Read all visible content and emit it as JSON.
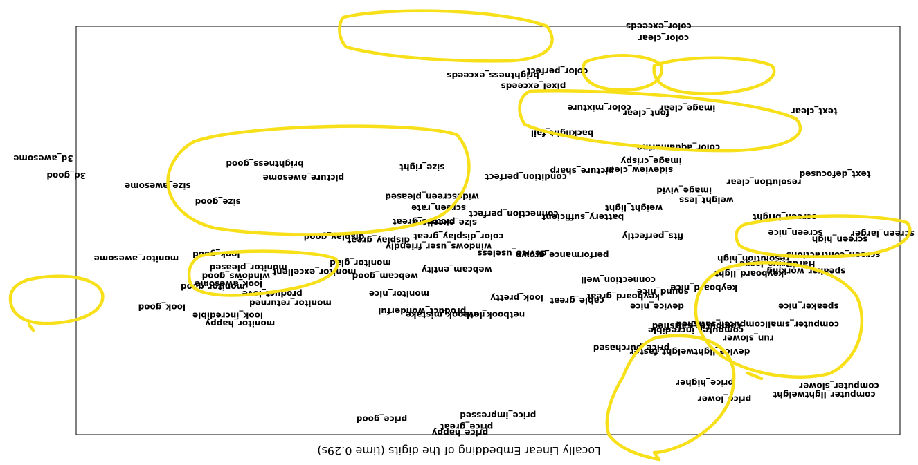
{
  "chart_data": {
    "type": "scatter",
    "orientation": "rotated-180",
    "title": "Locally Linear Embedding of the digits (time 0.29s)",
    "xlabel": "",
    "ylabel": "",
    "grid": false,
    "ticks": false,
    "highlight_color": "#f7e01a",
    "points": [
      {
        "label": "price_happy",
        "x": 0.534,
        "y": 0.988
      },
      {
        "label": "price_great",
        "x": 0.526,
        "y": 0.974
      },
      {
        "label": "price_good",
        "x": 0.629,
        "y": 0.955
      },
      {
        "label": "price_impressed",
        "x": 0.488,
        "y": 0.946
      },
      {
        "label": "price_lower",
        "x": 0.213,
        "y": 0.906
      },
      {
        "label": "price_higher",
        "x": 0.237,
        "y": 0.866
      },
      {
        "label": "computer_lightweight",
        "x": 0.092,
        "y": 0.895
      },
      {
        "label": "computer_slower",
        "x": 0.074,
        "y": 0.874
      },
      {
        "label": "device_lightweight_faster",
        "x": 0.255,
        "y": 0.79
      },
      {
        "label": "price_purchased",
        "x": 0.326,
        "y": 0.781
      },
      {
        "label": "run_slower",
        "x": 0.184,
        "y": 0.757
      },
      {
        "label": "computer_incredible",
        "x": 0.248,
        "y": 0.738
      },
      {
        "label": "computer_satisfied",
        "x": 0.247,
        "y": 0.728
      },
      {
        "label": "computer_smallcomputer_satisfied",
        "x": 0.173,
        "y": 0.723
      },
      {
        "label": "monitor_happy",
        "x": 0.801,
        "y": 0.721
      },
      {
        "label": "look_incredible",
        "x": 0.816,
        "y": 0.701
      },
      {
        "label": "netbook_love",
        "x": 0.493,
        "y": 0.7
      },
      {
        "label": "netbook_mistake",
        "x": 0.552,
        "y": 0.7
      },
      {
        "label": "product_wonderful",
        "x": 0.58,
        "y": 0.69
      },
      {
        "label": "look_good",
        "x": 0.896,
        "y": 0.681
      },
      {
        "label": "speaker_nice",
        "x": 0.111,
        "y": 0.679
      },
      {
        "label": "device_nice",
        "x": 0.295,
        "y": 0.679
      },
      {
        "label": "monitor_returned",
        "x": 0.74,
        "y": 0.671
      },
      {
        "label": "cable_great",
        "x": 0.392,
        "y": 0.665
      },
      {
        "label": "look_pretty",
        "x": 0.465,
        "y": 0.658
      },
      {
        "label": "keyboard_great",
        "x": 0.336,
        "y": 0.655
      },
      {
        "label": "monitor_nice",
        "x": 0.608,
        "y": 0.648
      },
      {
        "label": "product_love",
        "x": 0.762,
        "y": 0.648
      },
      {
        "label": "keyboard_nice",
        "x": 0.238,
        "y": 0.634
      },
      {
        "label": "monitor_good",
        "x": 0.834,
        "y": 0.631
      },
      {
        "label": "look_awesome",
        "x": 0.815,
        "y": 0.624
      },
      {
        "label": "sound_nice",
        "x": 0.288,
        "y": 0.643
      },
      {
        "label": "connection_well",
        "x": 0.342,
        "y": 0.614
      },
      {
        "label": "windows_good",
        "x": 0.806,
        "y": 0.605
      },
      {
        "label": "monitor_excellent",
        "x": 0.711,
        "y": 0.595
      },
      {
        "label": "webcam_good",
        "x": 0.625,
        "y": 0.605
      },
      {
        "label": "speaker_working",
        "x": 0.114,
        "y": 0.593
      },
      {
        "label": "keyboard_light",
        "x": 0.183,
        "y": 0.599
      },
      {
        "label": "monitor_pleased",
        "x": 0.791,
        "y": 0.584
      },
      {
        "label": "webcam_entity",
        "x": 0.538,
        "y": 0.589
      },
      {
        "label": "HardDrive_large",
        "x": 0.149,
        "y": 0.575
      },
      {
        "label": "resolution_high",
        "x": 0.178,
        "y": 0.563
      },
      {
        "label": "monitor_awesome",
        "x": 0.927,
        "y": 0.562
      },
      {
        "label": "look_good_2",
        "x": 0.83,
        "y": 0.552
      },
      {
        "label": "monitor_glad",
        "x": 0.655,
        "y": 0.573
      },
      {
        "label": "screen_contractions",
        "x": 0.081,
        "y": 0.553
      },
      {
        "label": "performance_grown",
        "x": 0.41,
        "y": 0.553
      },
      {
        "label": "device_useless",
        "x": 0.471,
        "y": 0.549
      },
      {
        "label": "windows_user_friendly",
        "x": 0.56,
        "y": 0.532
      },
      {
        "label": "display_great",
        "x": 0.633,
        "y": 0.517
      },
      {
        "label": "fits_perfectly",
        "x": 0.3,
        "y": 0.507
      },
      {
        "label": "color_display_great",
        "x": 0.536,
        "y": 0.508
      },
      {
        "label": "display_good",
        "x": 0.687,
        "y": 0.509
      },
      {
        "label": "screen_nice",
        "x": 0.127,
        "y": 0.499
      },
      {
        "label": "screen_larger",
        "x": 0.021,
        "y": 0.501
      },
      {
        "label": "screen_high",
        "x": 0.073,
        "y": 0.515
      },
      {
        "label": "picture_great",
        "x": 0.578,
        "y": 0.472
      },
      {
        "label": "size_excellent",
        "x": 0.553,
        "y": 0.474
      },
      {
        "label": "battery_sufficient",
        "x": 0.385,
        "y": 0.46
      },
      {
        "label": "screen_bright",
        "x": 0.14,
        "y": 0.46
      },
      {
        "label": "weight_light",
        "x": 0.323,
        "y": 0.438
      },
      {
        "label": "connection_perfect",
        "x": 0.469,
        "y": 0.453
      },
      {
        "label": "screen_rate",
        "x": 0.56,
        "y": 0.438
      },
      {
        "label": "weight_less",
        "x": 0.235,
        "y": 0.419
      },
      {
        "label": "size_good",
        "x": 0.828,
        "y": 0.423
      },
      {
        "label": "widescreen_pleased",
        "x": 0.568,
        "y": 0.41
      },
      {
        "label": "image_vivid",
        "x": 0.262,
        "y": 0.395
      },
      {
        "label": "size_awesome",
        "x": 0.901,
        "y": 0.384
      },
      {
        "label": "condition_perfect",
        "x": 0.454,
        "y": 0.362
      },
      {
        "label": "resolution_clear",
        "x": 0.165,
        "y": 0.375
      },
      {
        "label": "text_defocused",
        "x": 0.079,
        "y": 0.355
      },
      {
        "label": "picture_awesome",
        "x": 0.724,
        "y": 0.364
      },
      {
        "label": "size_right",
        "x": 0.58,
        "y": 0.338
      },
      {
        "label": "sideview_clear",
        "x": 0.317,
        "y": 0.345
      },
      {
        "label": "picture_sharp",
        "x": 0.386,
        "y": 0.347
      },
      {
        "label": "image_crispy",
        "x": 0.302,
        "y": 0.323
      },
      {
        "label": "brightness_good",
        "x": 0.771,
        "y": 0.33
      },
      {
        "label": "3d_good",
        "x": 1.012,
        "y": 0.359
      },
      {
        "label": "3d_awesome",
        "x": 1.04,
        "y": 0.316
      },
      {
        "label": "color_aquamarine",
        "x": 0.269,
        "y": 0.29
      },
      {
        "label": "backlight_fail",
        "x": 0.41,
        "y": 0.255
      },
      {
        "label": "color_mixture",
        "x": 0.365,
        "y": 0.193
      },
      {
        "label": "image_clear",
        "x": 0.258,
        "y": 0.194
      },
      {
        "label": "font_clear",
        "x": 0.308,
        "y": 0.206
      },
      {
        "label": "text_clear",
        "x": 0.104,
        "y": 0.201
      },
      {
        "label": "pixel_exceeds",
        "x": 0.445,
        "y": 0.14
      },
      {
        "label": "brightness_exceeds",
        "x": 0.494,
        "y": 0.113
      },
      {
        "label": "color_perfect",
        "x": 0.416,
        "y": 0.103
      },
      {
        "label": "color_clear",
        "x": 0.287,
        "y": 0.022
      },
      {
        "label": "color_exceeds",
        "x": 0.293,
        "y": -0.007
      }
    ]
  }
}
